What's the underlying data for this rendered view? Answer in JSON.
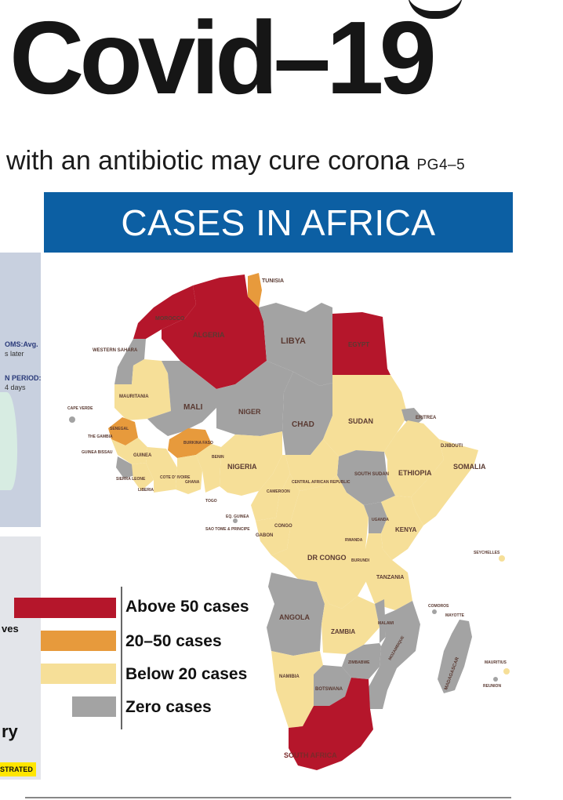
{
  "headline": "Covid–19",
  "tagline": {
    "text": "with an antibiotic may cure corona",
    "page_ref": "PG4–5"
  },
  "banner": "CASES IN AFRICA",
  "colors": {
    "above_50": "#b5162b",
    "between_20_50": "#e79a3c",
    "below_20": "#f6df98",
    "zero": "#a3a3a3",
    "banner": "#0c5fa3"
  },
  "legend": [
    {
      "label": "Above 50 cases",
      "color": "#b5162b"
    },
    {
      "label": "20–50 cases",
      "color": "#e79a3c"
    },
    {
      "label": "Below 20 cases",
      "color": "#f6df98"
    },
    {
      "label": "Zero cases",
      "color": "#a3a3a3"
    }
  ],
  "countries": {
    "tunisia": "TUNISIA",
    "algeria": "ALGERIA",
    "morocco": "MOROCCO",
    "libya": "LIBYA",
    "egypt": "EGYPT",
    "western_sahara": "WESTERN SAHARA",
    "mauritania": "MAURITANIA",
    "mali": "MALI",
    "niger": "NIGER",
    "chad": "CHAD",
    "sudan": "SUDAN",
    "eritrea": "ERITREA",
    "djibouti": "DJIBOUTI",
    "somalia": "SOMALIA",
    "ethiopia": "ETHIOPIA",
    "south_sudan": "SOUTH SUDAN",
    "senegal": "SENEGAL",
    "gambia": "THE GAMBIA",
    "guinea_bissau": "GUINEA BISSAU",
    "guinea": "GUINEA",
    "sierra_leone": "SIERRA LEONE",
    "liberia": "LIBERIA",
    "cote_divoire": "COTE D' IVOIRE",
    "ghana": "GHANA",
    "burkina_faso": "BURKINA FASO",
    "togo": "TOGO",
    "benin": "BENIN",
    "nigeria": "NIGERIA",
    "cameroon": "CAMEROON",
    "car": "CENTRAL AFRICAN REPUBLIC",
    "eq_guinea": "EQ. GUINEA",
    "sao_tome": "SAO TOME & PRINCIPE",
    "gabon": "GABON",
    "congo": "CONGO",
    "dr_congo": "DR CONGO",
    "uganda": "UGANDA",
    "kenya": "KENYA",
    "rwanda": "RWANDA",
    "burundi": "BURUNDI",
    "tanzania": "TANZANIA",
    "seychelles": "SEYCHELLES",
    "angola": "ANGOLA",
    "zambia": "ZAMBIA",
    "malawi": "MALAWI",
    "mozambique": "MOZAMBIQUE",
    "zimbabwe": "ZIMBABWE",
    "madagascar": "MADAGASCAR",
    "comoros": "COMOROS",
    "mayotte": "MAYOTTE",
    "mauritius": "MAURITIUS",
    "reunion": "REUNION",
    "namibia": "NAMIBIA",
    "botswana": "BOTSWANA",
    "south_africa": "SOUTH AFRICA",
    "cape_verde": "CAPE VERDE"
  },
  "side": {
    "symptoms": "OMS:Avg.",
    "symptoms_sub": "s later",
    "incubation": "N PERIOD:",
    "incubation_sub": "4 days",
    "word_ves": "ves",
    "word_ry": "ry",
    "badge": "STRATED"
  }
}
